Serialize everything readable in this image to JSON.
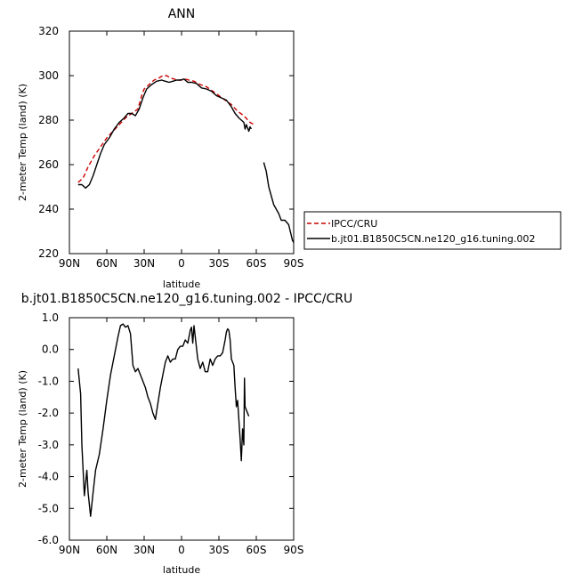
{
  "chart_data": [
    {
      "type": "line",
      "title": "ANN",
      "xlabel": "latitude",
      "ylabel": "2-meter Temp (land) (K)",
      "xlim": [
        90,
        -90
      ],
      "ylim": [
        220,
        320
      ],
      "xticks": [
        90,
        60,
        30,
        0,
        -30,
        -60,
        -90
      ],
      "xtick_labels": [
        "90N",
        "60N",
        "30N",
        "0",
        "30S",
        "60S",
        "90S"
      ],
      "yticks": [
        220,
        240,
        260,
        280,
        300,
        320
      ],
      "ytick_labels": [
        "220",
        "240",
        "260",
        "280",
        "300",
        "320"
      ],
      "grid": false,
      "legend_position": "right",
      "series": [
        {
          "name": "IPCC/CRU",
          "color": "#cc0000",
          "dash": true,
          "segments": [
            [
              [
                83,
                252
              ],
              [
                79,
                254
              ],
              [
                75,
                259
              ],
              [
                70,
                264
              ],
              [
                65,
                268
              ],
              [
                60,
                272
              ],
              [
                55,
                275
              ],
              [
                50,
                278
              ],
              [
                45,
                281
              ],
              [
                40,
                283
              ],
              [
                35,
                285
              ],
              [
                32,
                291
              ],
              [
                30,
                294
              ],
              [
                26,
                296
              ],
              [
                22,
                298
              ],
              [
                18,
                299
              ],
              [
                15,
                300
              ],
              [
                12,
                300
              ],
              [
                9,
                299
              ],
              [
                6,
                298.5
              ],
              [
                3,
                298
              ],
              [
                0,
                298
              ],
              [
                -3,
                298.5
              ],
              [
                -6,
                298
              ],
              [
                -10,
                297.5
              ],
              [
                -15,
                296
              ],
              [
                -20,
                295
              ],
              [
                -25,
                293
              ],
              [
                -30,
                291
              ],
              [
                -35,
                289
              ],
              [
                -40,
                287
              ],
              [
                -45,
                284
              ],
              [
                -50,
                282
              ],
              [
                -55,
                279
              ],
              [
                -58,
                278
              ]
            ]
          ]
        },
        {
          "name": "b.jt01.B1850C5CN.ne120_g16.tuning.002",
          "color": "#000000",
          "dash": false,
          "segments": [
            [
              [
                83,
                251
              ],
              [
                80,
                251
              ],
              [
                77,
                249.5
              ],
              [
                74,
                251
              ],
              [
                71,
                255
              ],
              [
                68,
                260
              ],
              [
                65,
                265
              ],
              [
                62,
                269
              ],
              [
                58,
                272
              ],
              [
                54,
                276
              ],
              [
                50,
                279
              ],
              [
                46,
                281
              ],
              [
                43,
                283
              ],
              [
                40,
                283
              ],
              [
                37,
                282
              ],
              [
                34,
                285
              ],
              [
                31,
                290
              ],
              [
                28,
                294
              ],
              [
                24,
                296
              ],
              [
                20,
                297.5
              ],
              [
                16,
                298
              ],
              [
                13,
                297.5
              ],
              [
                10,
                297
              ],
              [
                7,
                297.5
              ],
              [
                4,
                298
              ],
              [
                1,
                298
              ],
              [
                -2,
                298.5
              ],
              [
                -5,
                297
              ],
              [
                -8,
                297
              ],
              [
                -12,
                296.5
              ],
              [
                -16,
                294.5
              ],
              [
                -20,
                294
              ],
              [
                -24,
                293
              ],
              [
                -28,
                291
              ],
              [
                -32,
                290
              ],
              [
                -36,
                289
              ],
              [
                -40,
                286
              ],
              [
                -43,
                283
              ],
              [
                -46,
                281
              ],
              [
                -48,
                280
              ],
              [
                -50,
                279
              ],
              [
                -51,
                276
              ],
              [
                -52,
                278
              ],
              [
                -54,
                275
              ],
              [
                -55,
                277
              ],
              [
                -56,
                276
              ]
            ],
            [
              [
                -66,
                261
              ],
              [
                -68,
                257
              ],
              [
                -70,
                250
              ],
              [
                -72,
                246
              ],
              [
                -74,
                242
              ],
              [
                -76,
                240
              ],
              [
                -78,
                238
              ],
              [
                -80,
                235
              ],
              [
                -83,
                235
              ],
              [
                -86,
                233
              ],
              [
                -89,
                226
              ],
              [
                -90,
                225
              ]
            ]
          ]
        }
      ]
    },
    {
      "type": "line",
      "title": "b.jt01.B1850C5CN.ne120_g16.tuning.002 - IPCC/CRU",
      "xlabel": "latitude",
      "ylabel": "2-meter Temp (land) (K)",
      "xlim": [
        90,
        -90
      ],
      "ylim": [
        -6.0,
        1.0
      ],
      "xticks": [
        90,
        60,
        30,
        0,
        -30,
        -60,
        -90
      ],
      "xtick_labels": [
        "90N",
        "60N",
        "30N",
        "0",
        "30S",
        "60S",
        "90S"
      ],
      "yticks": [
        -6.0,
        -5.0,
        -4.0,
        -3.0,
        -2.0,
        -1.0,
        0.0,
        1.0
      ],
      "ytick_labels": [
        "-6.0",
        "-5.0",
        "-4.0",
        "-3.0",
        "-2.0",
        "-1.0",
        "0.0",
        "1.0"
      ],
      "grid": false,
      "series": [
        {
          "color": "#000000",
          "dash": false,
          "segments": [
            [
              [
                83,
                -0.6
              ],
              [
                81,
                -1.4
              ],
              [
                80,
                -3.0
              ],
              [
                78,
                -4.6
              ],
              [
                76,
                -3.8
              ],
              [
                75,
                -4.5
              ],
              [
                73,
                -5.25
              ],
              [
                71,
                -4.5
              ],
              [
                69,
                -3.8
              ],
              [
                66,
                -3.3
              ],
              [
                63,
                -2.5
              ],
              [
                60,
                -1.6
              ],
              [
                57,
                -0.8
              ],
              [
                54,
                -0.2
              ],
              [
                51,
                0.4
              ],
              [
                49,
                0.75
              ],
              [
                47,
                0.8
              ],
              [
                45,
                0.7
              ],
              [
                43,
                0.75
              ],
              [
                41,
                0.5
              ],
              [
                39,
                -0.5
              ],
              [
                37,
                -0.7
              ],
              [
                35,
                -0.6
              ],
              [
                33,
                -0.8
              ],
              [
                31,
                -1.0
              ],
              [
                29,
                -1.2
              ],
              [
                27,
                -1.5
              ],
              [
                25,
                -1.7
              ],
              [
                23,
                -2.0
              ],
              [
                21,
                -2.2
              ],
              [
                19,
                -1.7
              ],
              [
                17,
                -1.2
              ],
              [
                15,
                -0.8
              ],
              [
                13,
                -0.4
              ],
              [
                11,
                -0.2
              ],
              [
                9,
                -0.4
              ],
              [
                7,
                -0.3
              ],
              [
                5,
                -0.3
              ],
              [
                3,
                0.0
              ],
              [
                1,
                0.1
              ],
              [
                -1,
                0.1
              ],
              [
                -3,
                0.3
              ],
              [
                -5,
                0.2
              ],
              [
                -7,
                0.6
              ],
              [
                -8,
                0.7
              ],
              [
                -9,
                0.2
              ],
              [
                -10,
                0.75
              ],
              [
                -11,
                0.4
              ],
              [
                -13,
                -0.3
              ],
              [
                -15,
                -0.6
              ],
              [
                -17,
                -0.4
              ],
              [
                -19,
                -0.7
              ],
              [
                -21,
                -0.7
              ],
              [
                -23,
                -0.3
              ],
              [
                -25,
                -0.5
              ],
              [
                -27,
                -0.3
              ],
              [
                -29,
                -0.2
              ],
              [
                -31,
                -0.2
              ],
              [
                -33,
                -0.1
              ],
              [
                -35,
                0.3
              ],
              [
                -36,
                0.55
              ],
              [
                -37,
                0.65
              ],
              [
                -38,
                0.6
              ],
              [
                -39,
                0.3
              ],
              [
                -40,
                -0.3
              ],
              [
                -42,
                -0.5
              ],
              [
                -43,
                -1.2
              ],
              [
                -44,
                -1.8
              ],
              [
                -45,
                -1.6
              ],
              [
                -46,
                -2.2
              ],
              [
                -47,
                -2.8
              ],
              [
                -48,
                -3.5
              ],
              [
                -49,
                -2.5
              ],
              [
                -50,
                -3.0
              ],
              [
                -50.5,
                -0.9
              ],
              [
                -51,
                -1.8
              ],
              [
                -52,
                -1.9
              ],
              [
                -54,
                -2.1
              ]
            ]
          ]
        }
      ]
    }
  ],
  "legend": {
    "entries": [
      "IPCC/CRU",
      "b.jt01.B1850C5CN.ne120_g16.tuning.002"
    ]
  }
}
